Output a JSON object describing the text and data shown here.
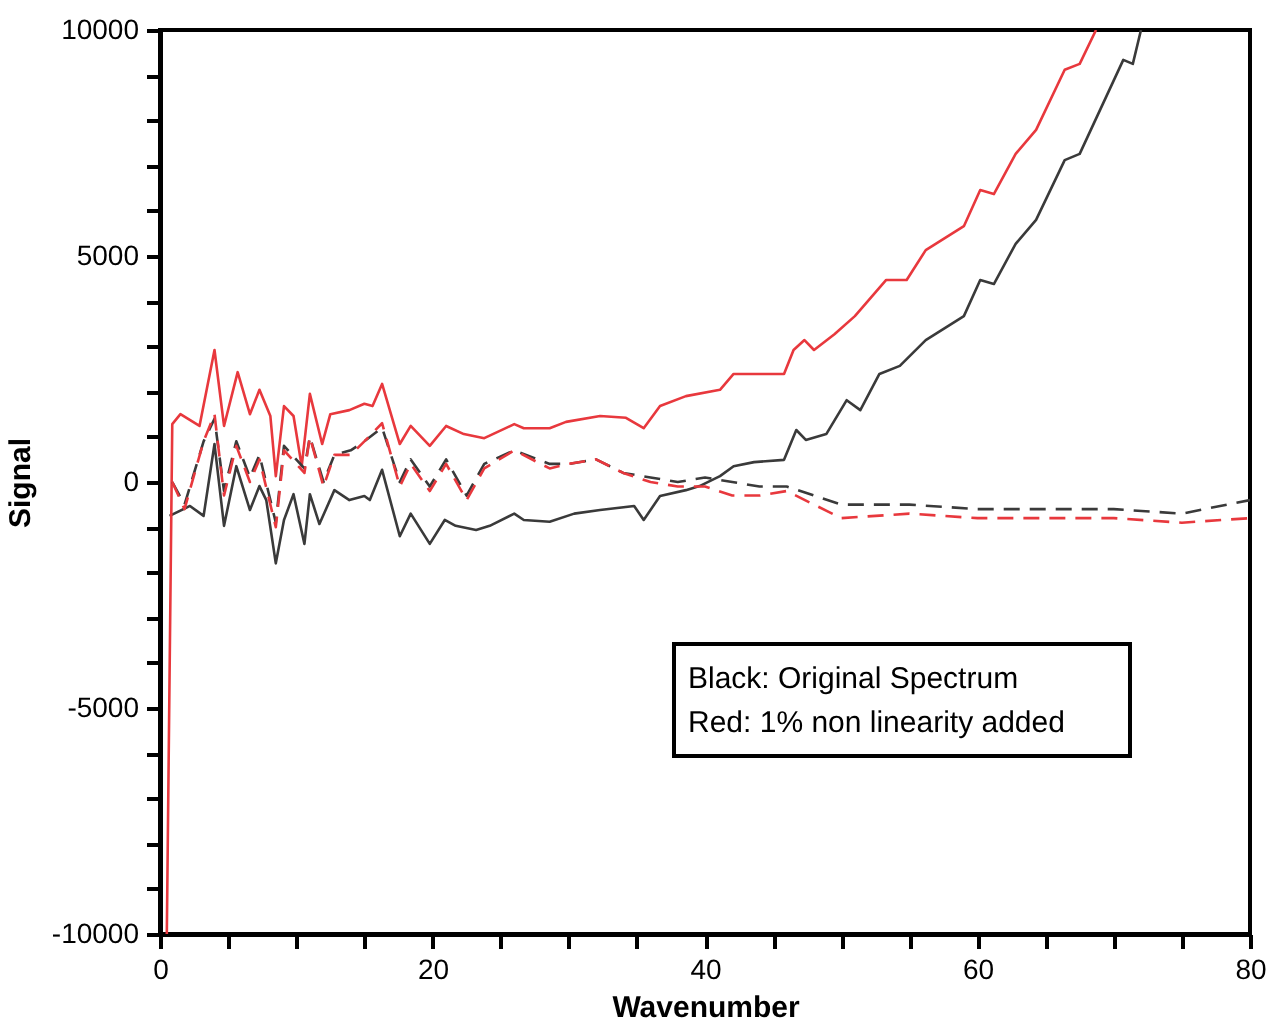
{
  "chart_data": {
    "type": "line",
    "xlabel": "Wavenumber",
    "ylabel": "Signal",
    "xlim": [
      0,
      80
    ],
    "ylim": [
      -10000,
      10000
    ],
    "xticks": [
      0,
      {
        "value": 5,
        "label": null
      },
      {
        "value": 10,
        "label": null
      },
      {
        "value": 15,
        "label": null
      },
      20,
      {
        "value": 25,
        "label": null
      },
      {
        "value": 30,
        "label": null
      },
      {
        "value": 35,
        "label": null
      },
      40,
      {
        "value": 45,
        "label": null
      },
      {
        "value": 50,
        "label": null
      },
      {
        "value": 55,
        "label": null
      },
      60,
      {
        "value": 65,
        "label": null
      },
      {
        "value": 70,
        "label": null
      },
      {
        "value": 75,
        "label": null
      },
      80
    ],
    "yticks": [
      -10000,
      {
        "value": -9000,
        "label": null
      },
      {
        "value": -8000,
        "label": null
      },
      {
        "value": -7000,
        "label": null
      },
      {
        "value": -6000,
        "label": null
      },
      -5000,
      {
        "value": -4000,
        "label": null
      },
      {
        "value": -3000,
        "label": null
      },
      {
        "value": -2000,
        "label": null
      },
      {
        "value": -1000,
        "label": null
      },
      0,
      {
        "value": 1000,
        "label": null
      },
      {
        "value": 2000,
        "label": null
      },
      {
        "value": 3000,
        "label": null
      },
      {
        "value": 4000,
        "label": null
      },
      5000,
      {
        "value": 6000,
        "label": null
      },
      {
        "value": 7000,
        "label": null
      },
      {
        "value": 8000,
        "label": null
      },
      {
        "value": 9000,
        "label": null
      },
      10000
    ],
    "grid": false,
    "annotations": [
      "Black: Original Spectrum",
      "Red: 1% non linearity added"
    ],
    "series": [
      {
        "color": "#3a3a3a",
        "line_style": "solid",
        "x": [
          0.7,
          2.2,
          3.2,
          4.0,
          4.7,
          5.6,
          6.6,
          7.3,
          7.8,
          8.5,
          9.1,
          9.8,
          10.6,
          11.0,
          11.7,
          12.8,
          13.9,
          15.0,
          15.4,
          16.3,
          17.6,
          18.4,
          19.8,
          20.9,
          21.7,
          23.2,
          24.2,
          26.0,
          26.7,
          28.6,
          30.4,
          32.3,
          34.8,
          35.5,
          36.7,
          38.6,
          39.6,
          41.1,
          42.1,
          43.6,
          45.8,
          46.7,
          47.4,
          48.9,
          50.4,
          51.4,
          52.8,
          54.3,
          56.2,
          59.0,
          60.2,
          61.2,
          62.8,
          64.3,
          66.4,
          67.5,
          70.7,
          71.4,
          72.0
        ],
        "values": [
          -750,
          -530,
          -750,
          840,
          -970,
          350,
          -620,
          -90,
          -400,
          -1800,
          -840,
          -270,
          -1370,
          -270,
          -930,
          -180,
          -400,
          -310,
          -400,
          270,
          -1200,
          -700,
          -1370,
          -840,
          -970,
          -1060,
          -970,
          -700,
          -840,
          -880,
          -700,
          -620,
          -530,
          -840,
          -310,
          -180,
          -90,
          130,
          350,
          440,
          490,
          1150,
          930,
          1060,
          1810,
          1590,
          2390,
          2570,
          3140,
          3670,
          4470,
          4380,
          5270,
          5800,
          7120,
          7260,
          9340,
          9250,
          10000
        ]
      },
      {
        "color": "#e8383d",
        "line_style": "solid",
        "x": [
          0.5,
          0.9,
          1.5,
          2.9,
          4.0,
          4.7,
          5.7,
          6.6,
          7.3,
          8.1,
          8.5,
          9.1,
          9.8,
          10.4,
          11.0,
          11.9,
          12.5,
          13.9,
          15.0,
          15.6,
          16.3,
          17.6,
          18.4,
          19.8,
          21.0,
          22.3,
          23.8,
          26.0,
          26.7,
          28.6,
          29.8,
          32.3,
          34.2,
          35.5,
          36.7,
          38.6,
          41.1,
          42.1,
          43.6,
          45.8,
          46.5,
          47.3,
          48.0,
          49.5,
          51.0,
          53.3,
          54.8,
          56.2,
          59.0,
          60.2,
          61.2,
          62.8,
          64.3,
          66.4,
          67.5,
          68.7
        ],
        "values": [
          -10000,
          1280,
          1500,
          1240,
          2920,
          1240,
          2430,
          1500,
          2040,
          1460,
          130,
          1680,
          1460,
          350,
          1950,
          840,
          1500,
          1590,
          1730,
          1680,
          2170,
          840,
          1240,
          800,
          1240,
          1060,
          970,
          1280,
          1190,
          1190,
          1330,
          1460,
          1420,
          1190,
          1680,
          1900,
          2040,
          2390,
          2390,
          2390,
          2920,
          3140,
          2920,
          3270,
          3670,
          4470,
          4470,
          5130,
          5660,
          6460,
          6370,
          7260,
          7790,
          9120,
          9250,
          10000
        ]
      },
      {
        "color": "#3a3a3a",
        "line_style": "dashed",
        "x": [
          0.9,
          1.8,
          3.2,
          4.0,
          4.7,
          5.6,
          6.6,
          7.3,
          8.5,
          9.1,
          10.6,
          11.0,
          12.0,
          12.8,
          14.0,
          15.0,
          16.3,
          17.6,
          18.4,
          19.8,
          21.0,
          22.5,
          23.8,
          26.0,
          28.6,
          30,
          32,
          34,
          36,
          38,
          40,
          42,
          44,
          46,
          48,
          50,
          55,
          60,
          65,
          70,
          75,
          80
        ],
        "values": [
          0,
          -500,
          900,
          1400,
          -200,
          900,
          100,
          600,
          -900,
          800,
          300,
          1000,
          0,
          600,
          700,
          900,
          1200,
          0,
          500,
          -100,
          500,
          -300,
          400,
          700,
          400,
          400,
          500,
          200,
          100,
          0,
          100,
          0,
          -100,
          -100,
          -300,
          -500,
          -500,
          -600,
          -600,
          -600,
          -700,
          -400
        ]
      },
      {
        "color": "#e8383d",
        "line_style": "dashed",
        "x": [
          0.9,
          1.8,
          3.2,
          4.0,
          4.7,
          5.6,
          6.6,
          7.3,
          8.5,
          9.1,
          10.6,
          11.0,
          12.0,
          12.8,
          14.0,
          15.0,
          16.3,
          17.6,
          18.4,
          19.8,
          21.0,
          22.5,
          23.8,
          26.0,
          28.6,
          30,
          32,
          34,
          36,
          38,
          40,
          42,
          44,
          46,
          48,
          50,
          55,
          60,
          65,
          70,
          75,
          80
        ],
        "values": [
          0,
          -600,
          900,
          1500,
          -300,
          800,
          0,
          500,
          -1000,
          700,
          200,
          1000,
          -100,
          600,
          600,
          900,
          1300,
          -100,
          400,
          -200,
          400,
          -400,
          300,
          700,
          300,
          400,
          500,
          200,
          0,
          -100,
          -100,
          -300,
          -300,
          -200,
          -500,
          -800,
          -700,
          -800,
          -800,
          -800,
          -900,
          -800
        ]
      }
    ]
  }
}
